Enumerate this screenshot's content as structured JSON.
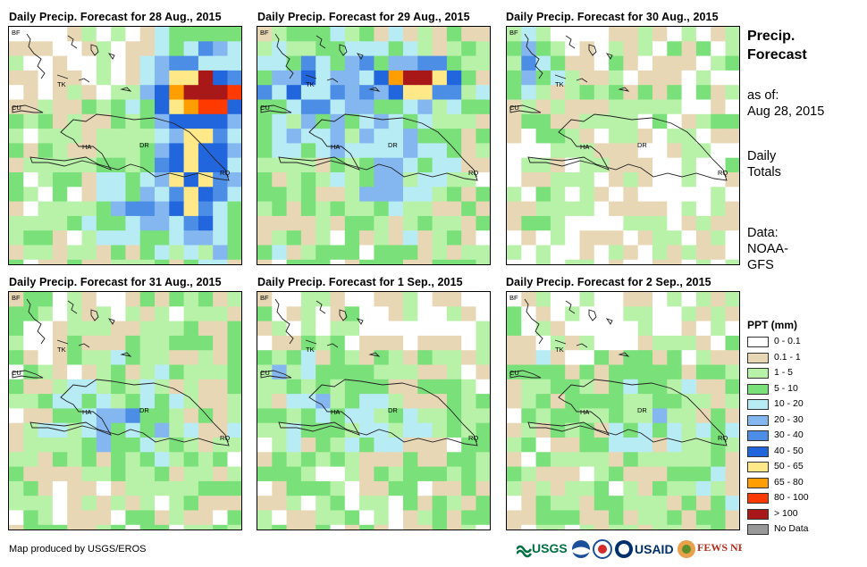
{
  "panels": [
    {
      "title": "Daily Precip. Forecast for 28 Aug., 2015"
    },
    {
      "title": "Daily Precip. Forecast for 29 Aug., 2015"
    },
    {
      "title": "Daily Precip. Forecast for 30 Aug., 2015"
    },
    {
      "title": "Daily Precip. Forecast for 31 Aug., 2015"
    },
    {
      "title": "Daily Precip. Forecast for 1 Sep., 2015"
    },
    {
      "title": "Daily Precip. Forecast for 2 Sep., 2015"
    }
  ],
  "map_labels": {
    "bf": "BF",
    "tk": "TK",
    "cu": "CU",
    "ha": "HA",
    "dr": "DR",
    "rq": "RQ"
  },
  "side": {
    "title_line1": "Precip.",
    "title_line2": "Forecast",
    "asof_label": "as of:",
    "asof_date": "Aug 28, 2015",
    "daily_line1": "Daily",
    "daily_line2": "Totals",
    "data_line1": "Data:",
    "data_line2": "NOAA-",
    "data_line3": "GFS"
  },
  "legend": {
    "title": "PPT (mm)",
    "items": [
      {
        "label": "0 - 0.1",
        "color": "#ffffff"
      },
      {
        "label": "0.1 - 1",
        "color": "#e8d7b4"
      },
      {
        "label": "1 - 5",
        "color": "#b8f2a8"
      },
      {
        "label": "5 - 10",
        "color": "#7ae07a"
      },
      {
        "label": "10 - 20",
        "color": "#b8ecf5"
      },
      {
        "label": "20 - 30",
        "color": "#84b6f0"
      },
      {
        "label": "30 - 40",
        "color": "#4c8ee6"
      },
      {
        "label": "40 - 50",
        "color": "#2266dd"
      },
      {
        "label": "50 - 65",
        "color": "#ffe888"
      },
      {
        "label": "65 - 80",
        "color": "#ff9e00"
      },
      {
        "label": "80 - 100",
        "color": "#ff3a00"
      },
      {
        "label": "> 100",
        "color": "#a81818"
      },
      {
        "label": "No Data",
        "color": "#999999"
      }
    ]
  },
  "credit": "Map produced by USGS/EROS",
  "logos": {
    "usgs": "USGS",
    "usaid": "USAID",
    "fewsnet": "FEWS NET"
  }
}
